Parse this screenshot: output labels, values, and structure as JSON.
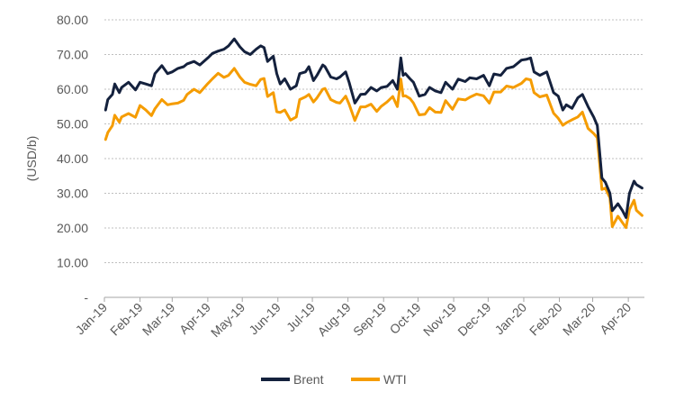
{
  "chart_data": {
    "type": "line",
    "title": "",
    "ylabel": "(USD/b)",
    "xlabel": "",
    "ylim": [
      0,
      80
    ],
    "y_ticks": [
      {
        "value": 0,
        "label": "-"
      },
      {
        "value": 10,
        "label": "10.00"
      },
      {
        "value": 20,
        "label": "20.00"
      },
      {
        "value": 30,
        "label": "30.00"
      },
      {
        "value": 40,
        "label": "40.00"
      },
      {
        "value": 50,
        "label": "50.00"
      },
      {
        "value": 60,
        "label": "60.00"
      },
      {
        "value": 70,
        "label": "70.00"
      },
      {
        "value": 80,
        "label": "80.00"
      }
    ],
    "x_ticks": [
      {
        "date": "2019-01-01",
        "label": "Jan-19"
      },
      {
        "date": "2019-02-01",
        "label": "Feb-19"
      },
      {
        "date": "2019-03-01",
        "label": "Mar-19"
      },
      {
        "date": "2019-04-01",
        "label": "Apr-19"
      },
      {
        "date": "2019-05-01",
        "label": "May-19"
      },
      {
        "date": "2019-06-01",
        "label": "Jun-19"
      },
      {
        "date": "2019-07-01",
        "label": "Jul-19"
      },
      {
        "date": "2019-08-01",
        "label": "Aug-19"
      },
      {
        "date": "2019-09-01",
        "label": "Sep-19"
      },
      {
        "date": "2019-10-01",
        "label": "Oct-19"
      },
      {
        "date": "2019-11-01",
        "label": "Nov-19"
      },
      {
        "date": "2019-12-01",
        "label": "Dec-19"
      },
      {
        "date": "2020-01-01",
        "label": "Jan-20"
      },
      {
        "date": "2020-02-01",
        "label": "Feb-20"
      },
      {
        "date": "2020-03-01",
        "label": "Mar-20"
      },
      {
        "date": "2020-04-01",
        "label": "Apr-20"
      }
    ],
    "xlim": [
      "2019-01-01",
      "2020-04-15"
    ],
    "grid": "horizontal dotted",
    "legend_position": "bottom",
    "series": [
      {
        "name": "Brent",
        "color": "#14213d",
        "points": [
          [
            "2019-01-02",
            54.0
          ],
          [
            "2019-01-04",
            57.0
          ],
          [
            "2019-01-08",
            58.5
          ],
          [
            "2019-01-10",
            61.5
          ],
          [
            "2019-01-14",
            59.0
          ],
          [
            "2019-01-16",
            60.5
          ],
          [
            "2019-01-22",
            62.0
          ],
          [
            "2019-01-28",
            59.8
          ],
          [
            "2019-02-01",
            62.0
          ],
          [
            "2019-02-06",
            61.5
          ],
          [
            "2019-02-11",
            61.0
          ],
          [
            "2019-02-14",
            64.5
          ],
          [
            "2019-02-20",
            66.8
          ],
          [
            "2019-02-25",
            64.5
          ],
          [
            "2019-03-01",
            65.0
          ],
          [
            "2019-03-06",
            66.0
          ],
          [
            "2019-03-11",
            66.5
          ],
          [
            "2019-03-14",
            67.3
          ],
          [
            "2019-03-20",
            68.0
          ],
          [
            "2019-03-25",
            67.0
          ],
          [
            "2019-04-01",
            69.0
          ],
          [
            "2019-04-05",
            70.3
          ],
          [
            "2019-04-10",
            71.0
          ],
          [
            "2019-04-15",
            71.5
          ],
          [
            "2019-04-19",
            72.5
          ],
          [
            "2019-04-24",
            74.5
          ],
          [
            "2019-04-29",
            72.2
          ],
          [
            "2019-05-03",
            70.8
          ],
          [
            "2019-05-08",
            70.0
          ],
          [
            "2019-05-13",
            71.5
          ],
          [
            "2019-05-17",
            72.5
          ],
          [
            "2019-05-20",
            72.0
          ],
          [
            "2019-05-23",
            68.0
          ],
          [
            "2019-05-28",
            69.5
          ],
          [
            "2019-05-31",
            64.5
          ],
          [
            "2019-06-03",
            61.5
          ],
          [
            "2019-06-07",
            63.0
          ],
          [
            "2019-06-12",
            60.0
          ],
          [
            "2019-06-17",
            61.0
          ],
          [
            "2019-06-20",
            64.5
          ],
          [
            "2019-06-25",
            65.0
          ],
          [
            "2019-06-28",
            66.5
          ],
          [
            "2019-07-02",
            62.5
          ],
          [
            "2019-07-05",
            64.0
          ],
          [
            "2019-07-10",
            67.0
          ],
          [
            "2019-07-12",
            66.5
          ],
          [
            "2019-07-17",
            63.5
          ],
          [
            "2019-07-22",
            63.0
          ],
          [
            "2019-07-25",
            63.5
          ],
          [
            "2019-07-30",
            65.0
          ],
          [
            "2019-08-02",
            62.0
          ],
          [
            "2019-08-07",
            56.0
          ],
          [
            "2019-08-12",
            58.5
          ],
          [
            "2019-08-16",
            58.6
          ],
          [
            "2019-08-21",
            60.5
          ],
          [
            "2019-08-26",
            59.5
          ],
          [
            "2019-08-30",
            60.5
          ],
          [
            "2019-09-04",
            60.8
          ],
          [
            "2019-09-09",
            62.5
          ],
          [
            "2019-09-13",
            60.0
          ],
          [
            "2019-09-16",
            69.0
          ],
          [
            "2019-09-18",
            64.0
          ],
          [
            "2019-09-20",
            64.5
          ],
          [
            "2019-09-24",
            63.0
          ],
          [
            "2019-09-27",
            62.0
          ],
          [
            "2019-10-02",
            58.0
          ],
          [
            "2019-10-07",
            58.5
          ],
          [
            "2019-10-11",
            60.5
          ],
          [
            "2019-10-16",
            59.5
          ],
          [
            "2019-10-21",
            59.0
          ],
          [
            "2019-10-25",
            62.0
          ],
          [
            "2019-10-31",
            60.0
          ],
          [
            "2019-11-05",
            62.9
          ],
          [
            "2019-11-11",
            62.2
          ],
          [
            "2019-11-15",
            63.3
          ],
          [
            "2019-11-21",
            63.0
          ],
          [
            "2019-11-27",
            64.0
          ],
          [
            "2019-12-02",
            61.0
          ],
          [
            "2019-12-06",
            64.4
          ],
          [
            "2019-12-12",
            64.0
          ],
          [
            "2019-12-17",
            66.0
          ],
          [
            "2019-12-23",
            66.5
          ],
          [
            "2019-12-30",
            68.4
          ],
          [
            "2020-01-03",
            68.6
          ],
          [
            "2020-01-07",
            69.0
          ],
          [
            "2020-01-10",
            65.0
          ],
          [
            "2020-01-15",
            64.0
          ],
          [
            "2020-01-21",
            65.0
          ],
          [
            "2020-01-27",
            59.0
          ],
          [
            "2020-01-31",
            58.0
          ],
          [
            "2020-02-04",
            54.0
          ],
          [
            "2020-02-07",
            55.5
          ],
          [
            "2020-02-12",
            54.5
          ],
          [
            "2020-02-17",
            57.5
          ],
          [
            "2020-02-21",
            58.5
          ],
          [
            "2020-02-26",
            55.0
          ],
          [
            "2020-03-02",
            51.9
          ],
          [
            "2020-03-05",
            49.5
          ],
          [
            "2020-03-09",
            34.4
          ],
          [
            "2020-03-12",
            33.2
          ],
          [
            "2020-03-16",
            30.0
          ],
          [
            "2020-03-18",
            25.0
          ],
          [
            "2020-03-23",
            27.0
          ],
          [
            "2020-03-27",
            25.0
          ],
          [
            "2020-03-30",
            23.0
          ],
          [
            "2020-04-02",
            30.0
          ],
          [
            "2020-04-06",
            33.5
          ],
          [
            "2020-04-08",
            32.5
          ],
          [
            "2020-04-13",
            31.5
          ]
        ]
      },
      {
        "name": "WTI",
        "color": "#f59c00",
        "points": [
          [
            "2019-01-02",
            45.5
          ],
          [
            "2019-01-04",
            47.5
          ],
          [
            "2019-01-08",
            49.5
          ],
          [
            "2019-01-10",
            52.5
          ],
          [
            "2019-01-14",
            50.5
          ],
          [
            "2019-01-16",
            52.0
          ],
          [
            "2019-01-22",
            53.0
          ],
          [
            "2019-01-28",
            51.9
          ],
          [
            "2019-02-01",
            55.3
          ],
          [
            "2019-02-06",
            54.0
          ],
          [
            "2019-02-11",
            52.4
          ],
          [
            "2019-02-14",
            54.4
          ],
          [
            "2019-02-20",
            57.0
          ],
          [
            "2019-02-25",
            55.5
          ],
          [
            "2019-03-01",
            55.8
          ],
          [
            "2019-03-06",
            56.0
          ],
          [
            "2019-03-11",
            56.8
          ],
          [
            "2019-03-14",
            58.5
          ],
          [
            "2019-03-20",
            60.0
          ],
          [
            "2019-03-25",
            59.0
          ],
          [
            "2019-04-01",
            61.6
          ],
          [
            "2019-04-05",
            63.0
          ],
          [
            "2019-04-10",
            64.6
          ],
          [
            "2019-04-15",
            63.4
          ],
          [
            "2019-04-19",
            64.0
          ],
          [
            "2019-04-24",
            66.0
          ],
          [
            "2019-04-29",
            63.5
          ],
          [
            "2019-05-03",
            62.0
          ],
          [
            "2019-05-08",
            61.4
          ],
          [
            "2019-05-13",
            61.0
          ],
          [
            "2019-05-17",
            62.8
          ],
          [
            "2019-05-20",
            63.1
          ],
          [
            "2019-05-23",
            57.9
          ],
          [
            "2019-05-28",
            59.0
          ],
          [
            "2019-05-31",
            53.5
          ],
          [
            "2019-06-03",
            53.3
          ],
          [
            "2019-06-07",
            54.0
          ],
          [
            "2019-06-12",
            51.1
          ],
          [
            "2019-06-17",
            52.0
          ],
          [
            "2019-06-20",
            57.0
          ],
          [
            "2019-06-25",
            57.8
          ],
          [
            "2019-06-28",
            58.5
          ],
          [
            "2019-07-02",
            56.3
          ],
          [
            "2019-07-05",
            57.5
          ],
          [
            "2019-07-10",
            60.0
          ],
          [
            "2019-07-12",
            60.2
          ],
          [
            "2019-07-17",
            57.0
          ],
          [
            "2019-07-22",
            56.2
          ],
          [
            "2019-07-25",
            56.0
          ],
          [
            "2019-07-30",
            58.0
          ],
          [
            "2019-08-02",
            55.7
          ],
          [
            "2019-08-07",
            51.0
          ],
          [
            "2019-08-12",
            54.9
          ],
          [
            "2019-08-16",
            54.9
          ],
          [
            "2019-08-21",
            55.7
          ],
          [
            "2019-08-26",
            53.6
          ],
          [
            "2019-08-30",
            55.1
          ],
          [
            "2019-09-04",
            56.3
          ],
          [
            "2019-09-09",
            57.9
          ],
          [
            "2019-09-13",
            55.0
          ],
          [
            "2019-09-16",
            62.9
          ],
          [
            "2019-09-18",
            58.0
          ],
          [
            "2019-09-20",
            58.1
          ],
          [
            "2019-09-24",
            57.3
          ],
          [
            "2019-09-27",
            56.0
          ],
          [
            "2019-10-02",
            52.6
          ],
          [
            "2019-10-07",
            52.8
          ],
          [
            "2019-10-11",
            54.7
          ],
          [
            "2019-10-16",
            53.4
          ],
          [
            "2019-10-21",
            53.3
          ],
          [
            "2019-10-25",
            56.7
          ],
          [
            "2019-10-31",
            54.2
          ],
          [
            "2019-11-05",
            57.2
          ],
          [
            "2019-11-11",
            56.9
          ],
          [
            "2019-11-15",
            57.7
          ],
          [
            "2019-11-21",
            58.6
          ],
          [
            "2019-11-27",
            58.1
          ],
          [
            "2019-12-02",
            56.0
          ],
          [
            "2019-12-06",
            59.2
          ],
          [
            "2019-12-12",
            59.2
          ],
          [
            "2019-12-17",
            60.9
          ],
          [
            "2019-12-23",
            60.5
          ],
          [
            "2019-12-30",
            61.7
          ],
          [
            "2020-01-03",
            63.0
          ],
          [
            "2020-01-07",
            62.7
          ],
          [
            "2020-01-10",
            59.0
          ],
          [
            "2020-01-15",
            57.8
          ],
          [
            "2020-01-21",
            58.3
          ],
          [
            "2020-01-27",
            53.1
          ],
          [
            "2020-01-31",
            51.6
          ],
          [
            "2020-02-04",
            49.6
          ],
          [
            "2020-02-07",
            50.3
          ],
          [
            "2020-02-12",
            51.2
          ],
          [
            "2020-02-17",
            52.0
          ],
          [
            "2020-02-21",
            53.4
          ],
          [
            "2020-02-26",
            48.7
          ],
          [
            "2020-03-02",
            47.2
          ],
          [
            "2020-03-05",
            46.0
          ],
          [
            "2020-03-09",
            31.1
          ],
          [
            "2020-03-12",
            31.5
          ],
          [
            "2020-03-16",
            28.7
          ],
          [
            "2020-03-18",
            20.4
          ],
          [
            "2020-03-23",
            23.4
          ],
          [
            "2020-03-27",
            21.5
          ],
          [
            "2020-03-30",
            20.1
          ],
          [
            "2020-04-02",
            25.3
          ],
          [
            "2020-04-06",
            28.0
          ],
          [
            "2020-04-08",
            25.1
          ],
          [
            "2020-04-13",
            23.6
          ]
        ]
      }
    ]
  }
}
